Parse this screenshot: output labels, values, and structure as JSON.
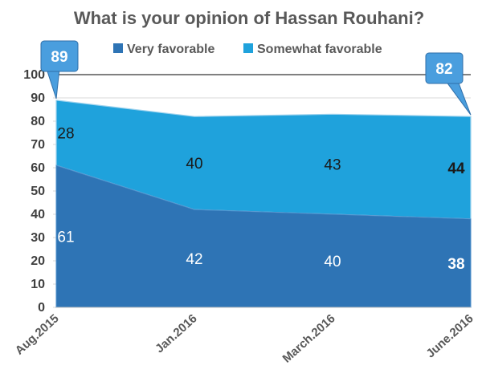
{
  "chart_data": {
    "type": "area",
    "title": "What is your opinion of Hassan Rouhani?",
    "categories": [
      "Aug.2015",
      "Jan.2016",
      "March.2016",
      "June.2016"
    ],
    "series": [
      {
        "name": "Very favorable",
        "values": [
          61,
          42,
          40,
          38
        ],
        "color": "#2E74B5",
        "label_color": "#ffffff"
      },
      {
        "name": "Somewhat favorable",
        "values": [
          28,
          40,
          43,
          44
        ],
        "color": "#1FA2DC",
        "label_color": "#1a1a1a"
      }
    ],
    "totals_callouts": [
      {
        "category": "Aug.2015",
        "value": "89"
      },
      {
        "category": "June.2016",
        "value": "82"
      }
    ],
    "ylim": [
      0,
      100
    ],
    "yticks": [
      0,
      10,
      20,
      30,
      40,
      50,
      60,
      70,
      80,
      90,
      100
    ],
    "grid": true,
    "legend": "top-center",
    "xlabel": "",
    "ylabel": ""
  }
}
